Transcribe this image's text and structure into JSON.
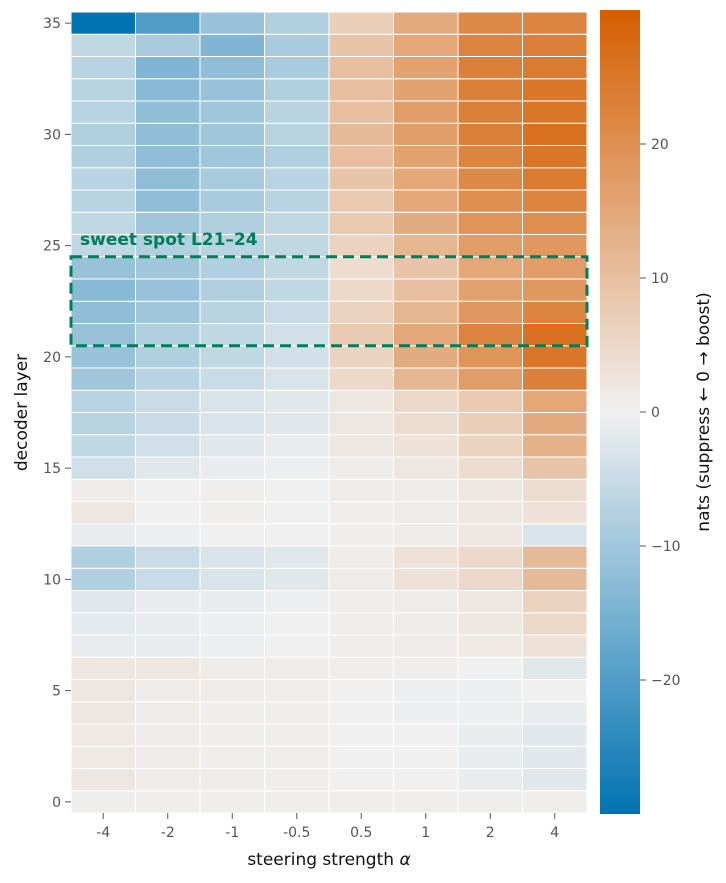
{
  "chart_data": {
    "type": "heatmap",
    "title": "",
    "xlabel": "steering strength",
    "xlabel_symbol": "α",
    "ylabel": "decoder layer",
    "x_categories": [
      "-4",
      "-2",
      "-1",
      "-0.5",
      "0.5",
      "1",
      "2",
      "4"
    ],
    "y_layers": [
      0,
      1,
      2,
      3,
      4,
      5,
      6,
      7,
      8,
      9,
      10,
      11,
      12,
      13,
      14,
      15,
      16,
      17,
      18,
      19,
      20,
      21,
      22,
      23,
      24,
      25,
      26,
      27,
      28,
      29,
      30,
      31,
      32,
      33,
      34,
      35
    ],
    "y_ticks": [
      0,
      5,
      10,
      15,
      20,
      25,
      30,
      35
    ],
    "values": [
      [
        0.5,
        0.5,
        0.5,
        0.5,
        0.5,
        0.5,
        0.5,
        0.5
      ],
      [
        2,
        1,
        1,
        0.5,
        0,
        0,
        -1,
        -2
      ],
      [
        1.5,
        1,
        0.5,
        0.5,
        0,
        0,
        -1,
        -2
      ],
      [
        1.5,
        1,
        0.5,
        0.5,
        0,
        0,
        -1,
        -2
      ],
      [
        2,
        1,
        0.5,
        0.5,
        0,
        -0.5,
        -0.5,
        -1
      ],
      [
        2,
        1,
        1,
        0.5,
        0,
        -0.5,
        -0.5,
        0
      ],
      [
        2,
        2,
        1,
        1,
        0.5,
        0.5,
        0,
        -2
      ],
      [
        -1,
        -1,
        -0.5,
        0,
        0.5,
        1,
        1.5,
        3
      ],
      [
        -1.5,
        -1,
        -0.5,
        0,
        0.5,
        1,
        2,
        5
      ],
      [
        -2,
        -1,
        -1,
        -0.5,
        0.5,
        1,
        2,
        6
      ],
      [
        -8,
        -5,
        -3,
        -2,
        1,
        3,
        5,
        11
      ],
      [
        -8,
        -5,
        -3,
        -2,
        1,
        3,
        5,
        11
      ],
      [
        -1,
        -0.5,
        0,
        0,
        0.5,
        1,
        2,
        -3
      ],
      [
        2,
        0,
        0.5,
        0,
        0.5,
        1,
        2,
        3
      ],
      [
        1,
        0,
        0.5,
        0,
        1,
        1,
        2,
        4
      ],
      [
        -4,
        -2,
        -1,
        -0.5,
        1,
        2,
        4,
        9
      ],
      [
        -6,
        -4,
        -2,
        -1,
        2,
        3,
        6,
        13
      ],
      [
        -7,
        -5,
        -3,
        -2,
        2,
        4,
        7,
        14
      ],
      [
        -7,
        -5,
        -3,
        -2,
        2,
        5,
        8,
        15
      ],
      [
        -10,
        -7,
        -5,
        -3,
        5,
        12,
        17,
        23
      ],
      [
        -11,
        -8,
        -6,
        -4,
        6,
        14,
        19,
        25
      ],
      [
        -11,
        -8,
        -6,
        -4,
        8,
        15,
        22,
        26
      ],
      [
        -12,
        -10,
        -7,
        -5,
        6,
        12,
        18,
        22
      ],
      [
        -13,
        -11,
        -8,
        -6,
        5,
        10,
        16,
        18
      ],
      [
        -11,
        -10,
        -8,
        -6,
        4,
        9,
        15,
        17
      ],
      [
        -6,
        -8,
        -7,
        -6,
        6,
        12,
        17,
        18
      ],
      [
        -6,
        -10,
        -8,
        -6,
        8,
        14,
        19,
        20
      ],
      [
        -7,
        -12,
        -9,
        -7,
        8,
        15,
        20,
        22
      ],
      [
        -7,
        -12,
        -9,
        -7,
        9,
        15,
        21,
        24
      ],
      [
        -8,
        -12,
        -10,
        -8,
        10,
        16,
        22,
        25
      ],
      [
        -8,
        -12,
        -10,
        -7,
        11,
        17,
        23,
        26
      ],
      [
        -7,
        -12,
        -10,
        -7,
        10,
        17,
        23,
        25
      ],
      [
        -7,
        -13,
        -11,
        -8,
        10,
        16,
        23,
        25
      ],
      [
        -7,
        -14,
        -12,
        -9,
        10,
        16,
        23,
        24
      ],
      [
        -6,
        -9,
        -14,
        -9,
        9,
        15,
        22,
        23
      ],
      [
        -30,
        -20,
        -11,
        -8,
        7,
        14,
        21,
        22
      ]
    ],
    "colorbar": {
      "label": "nats  (suppress ←  0  → boost)",
      "range": [
        -30,
        30
      ],
      "ticks": [
        -20,
        -10,
        0,
        10,
        20
      ],
      "colors": {
        "negative": "#0173b2",
        "zero": "#f0f0f0",
        "positive": "#d55e00"
      }
    },
    "highlight": {
      "label": "sweet spot  L21–24",
      "layer_range": [
        21,
        24
      ],
      "color": "#007d5a",
      "style": "dashed"
    },
    "grid": false
  }
}
